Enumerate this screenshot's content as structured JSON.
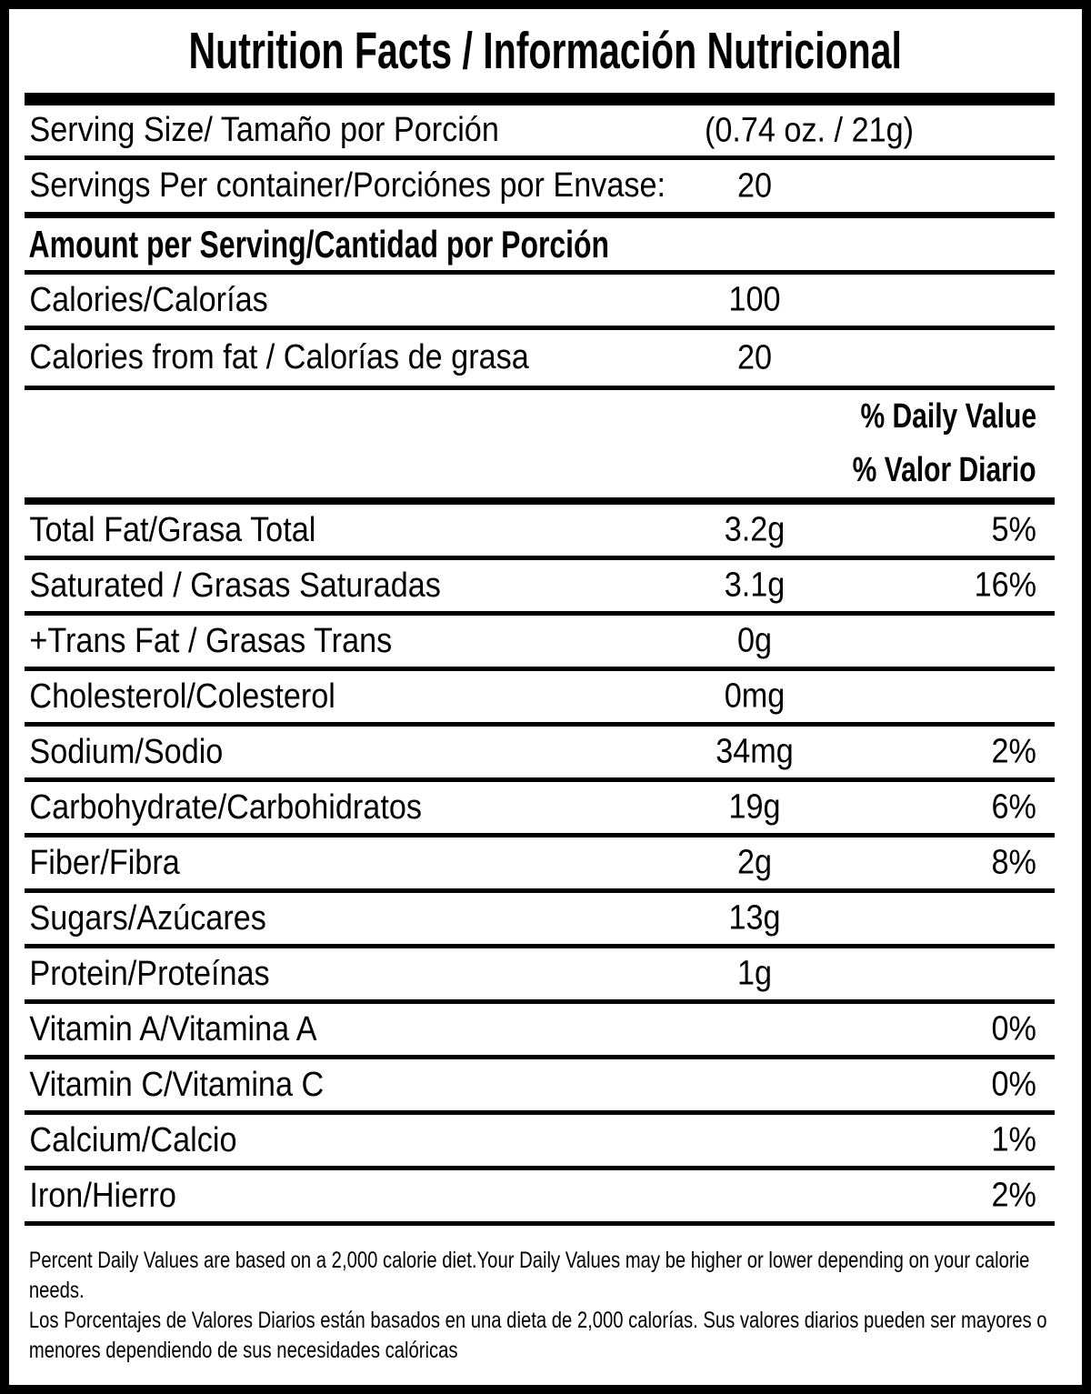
{
  "label": {
    "title": "Nutrition Facts / Información Nutricional",
    "serving_size": {
      "label": "Serving Size/ Tamaño por Porción",
      "value": "(0.74 oz. / 21g)"
    },
    "servings_per_container": {
      "label": "Servings Per container/Porciónes por Envase:",
      "value": "20"
    },
    "amount_heading": "Amount per Serving/Cantidad por Porción",
    "calories": {
      "label": "Calories/Calorías",
      "value": "100"
    },
    "calories_from_fat": {
      "label": "Calories from fat / Calorías de grasa",
      "value": "20"
    },
    "dv_header": {
      "en": "% Daily Value",
      "es": "% Valor Diario"
    },
    "nutrients": [
      {
        "label": "Total Fat/Grasa Total",
        "amount": "3.2g",
        "dv": "5%"
      },
      {
        "label": "Saturated / Grasas Saturadas",
        "amount": "3.1g",
        "dv": "16%"
      },
      {
        "label": "+Trans Fat / Grasas Trans",
        "amount": "0g",
        "dv": ""
      },
      {
        "label": "Cholesterol/Colesterol",
        "amount": "0mg",
        "dv": ""
      },
      {
        "label": "Sodium/Sodio",
        "amount": "34mg",
        "dv": "2%"
      },
      {
        "label": "Carbohydrate/Carbohidratos",
        "amount": "19g",
        "dv": "6%"
      },
      {
        "label": "Fiber/Fibra",
        "amount": "2g",
        "dv": "8%"
      },
      {
        "label": "Sugars/Azúcares",
        "amount": "13g",
        "dv": ""
      },
      {
        "label": "Protein/Proteínas",
        "amount": "1g",
        "dv": ""
      },
      {
        "label": "Vitamin A/Vitamina A",
        "amount": "",
        "dv": "0%"
      },
      {
        "label": "Vitamin C/Vitamina C",
        "amount": "",
        "dv": "0%"
      },
      {
        "label": "Calcium/Calcio",
        "amount": "",
        "dv": "1%"
      },
      {
        "label": "Iron/Hierro",
        "amount": "",
        "dv": "2%"
      }
    ],
    "footnote": {
      "en": "Percent Daily Values are based on a 2,000 calorie diet.Your Daily Values may be higher or lower depending on your calorie needs.",
      "es": "Los Porcentajes de Valores Diarios están basados en una dieta de 2,000 calorías. Sus valores diarios pueden ser mayores o menores dependiendo de sus necesidades calóricas"
    },
    "colors": {
      "foreground": "#000000",
      "background": "#ffffff"
    }
  }
}
